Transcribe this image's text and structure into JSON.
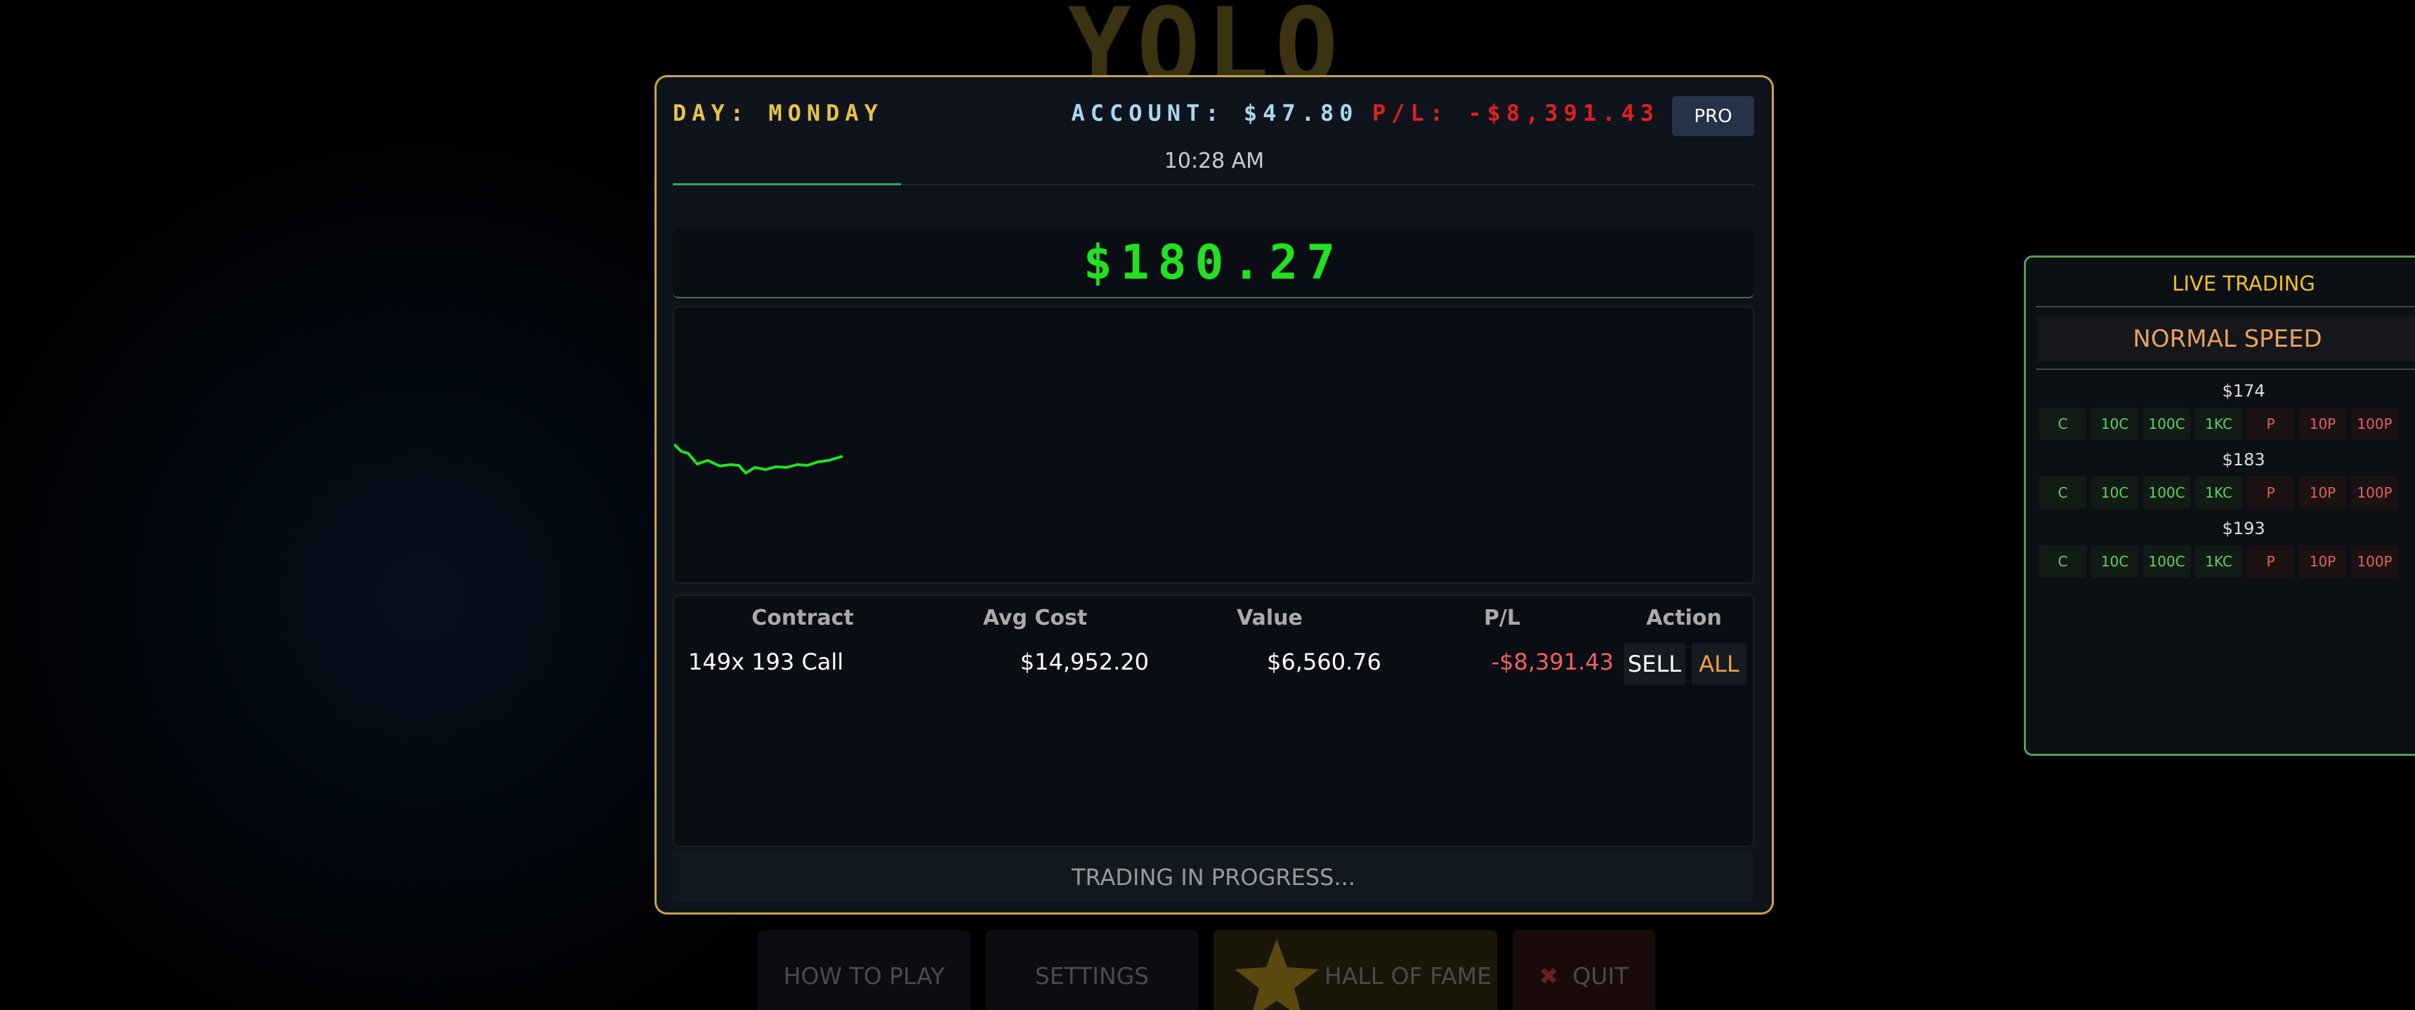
{
  "background": {
    "title": "YOLO",
    "menu": [
      "HOW TO PLAY",
      "SETTINGS",
      "HALL OF FAME",
      "QUIT"
    ]
  },
  "header": {
    "day": "DAY: MONDAY",
    "account": "ACCOUNT: $47.80",
    "pl": "P/L: -$8,391.43",
    "pro_button": "PRO",
    "time": "10:28 AM"
  },
  "price": "$180.27",
  "positions": {
    "columns": [
      "Contract",
      "Avg Cost",
      "Value",
      "P/L",
      "Action"
    ],
    "rows": [
      {
        "contract": "149x 193 Call",
        "avg_cost": "$14,952.20",
        "value": "$6,560.76",
        "pl": "-$8,391.43",
        "actions": [
          "SELL",
          "ALL"
        ]
      }
    ]
  },
  "status": "TRADING IN PROGRESS...",
  "side_panel": {
    "title": "LIVE TRADING",
    "speed": "NORMAL SPEED",
    "strikes": [
      {
        "label": "$174"
      },
      {
        "label": "$183"
      },
      {
        "label": "$193"
      }
    ],
    "buttons": [
      "C",
      "10C",
      "100C",
      "1KC",
      "P",
      "10P",
      "100P"
    ]
  }
}
